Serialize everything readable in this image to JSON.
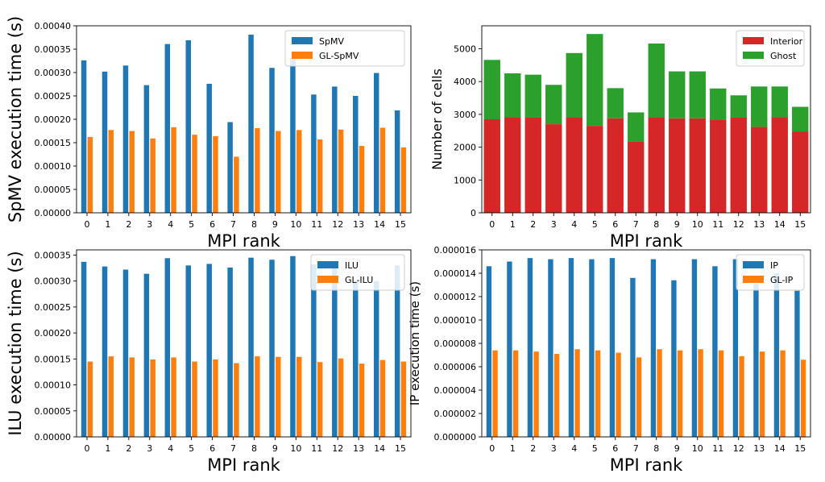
{
  "chart_data": [
    {
      "type": "bar",
      "mode": "grouped",
      "categories": [
        "0",
        "1",
        "2",
        "3",
        "4",
        "5",
        "6",
        "7",
        "8",
        "9",
        "10",
        "11",
        "12",
        "13",
        "14",
        "15"
      ],
      "series": [
        {
          "name": "SpMV",
          "color": "#1f77b4",
          "values": [
            0.000326,
            0.000302,
            0.000315,
            0.000273,
            0.000361,
            0.000369,
            0.000276,
            0.000194,
            0.000381,
            0.00031,
            0.000329,
            0.000253,
            0.00027,
            0.00025,
            0.000299,
            0.000219
          ]
        },
        {
          "name": "GL-SpMV",
          "color": "#ff7f0e",
          "values": [
            0.000162,
            0.000177,
            0.000175,
            0.000159,
            0.000183,
            0.000167,
            0.000164,
            0.00012,
            0.000181,
            0.000175,
            0.000177,
            0.000157,
            0.000178,
            0.000143,
            0.000182,
            0.00014
          ]
        }
      ],
      "xlabel": "MPI rank",
      "ylabel": "SpMV execution time (s)",
      "ylim": [
        0,
        0.0004
      ],
      "yticks": [
        "0.00000",
        "0.00005",
        "0.00010",
        "0.00015",
        "0.00020",
        "0.00025",
        "0.00030",
        "0.00035",
        "0.00040"
      ],
      "legend": "top-right"
    },
    {
      "type": "bar",
      "mode": "stacked",
      "categories": [
        "0",
        "1",
        "2",
        "3",
        "4",
        "5",
        "6",
        "7",
        "8",
        "9",
        "10",
        "11",
        "12",
        "13",
        "14",
        "15"
      ],
      "series": [
        {
          "name": "Interior",
          "color": "#d62728",
          "values": [
            2850,
            2910,
            2900,
            2700,
            2910,
            2650,
            2880,
            2180,
            2910,
            2880,
            2880,
            2840,
            2900,
            2620,
            2920,
            2480
          ]
        },
        {
          "name": "Ghost",
          "color": "#2ca02c",
          "values": [
            1810,
            1340,
            1310,
            1200,
            1960,
            2800,
            920,
            880,
            2250,
            1430,
            1430,
            950,
            680,
            1230,
            930,
            750
          ]
        }
      ],
      "xlabel": "MPI rank",
      "ylabel": "Number of cells",
      "ylim": [
        0,
        5700
      ],
      "yticks": [
        "0",
        "1000",
        "2000",
        "3000",
        "4000",
        "5000"
      ],
      "legend": "top-right"
    },
    {
      "type": "bar",
      "mode": "grouped",
      "categories": [
        "0",
        "1",
        "2",
        "3",
        "4",
        "5",
        "6",
        "7",
        "8",
        "9",
        "10",
        "11",
        "12",
        "13",
        "14",
        "15"
      ],
      "series": [
        {
          "name": "ILU",
          "color": "#1f77b4",
          "values": [
            0.000337,
            0.000328,
            0.000322,
            0.000314,
            0.000344,
            0.00033,
            0.000333,
            0.000326,
            0.000345,
            0.000341,
            0.000348,
            0.000332,
            0.000336,
            0.0003,
            0.0003,
            0.00033
          ]
        },
        {
          "name": "GL-ILU",
          "color": "#ff7f0e",
          "values": [
            0.000145,
            0.000155,
            0.000153,
            0.000149,
            0.000153,
            0.000145,
            0.000149,
            0.000142,
            0.000155,
            0.000154,
            0.000154,
            0.000144,
            0.000151,
            0.000141,
            0.000148,
            0.000145
          ]
        }
      ],
      "xlabel": "MPI rank",
      "ylabel": "ILU execution time (s)",
      "ylim": [
        0,
        0.00036
      ],
      "yticks": [
        "0.00000",
        "0.00005",
        "0.00010",
        "0.00015",
        "0.00020",
        "0.00025",
        "0.00030",
        "0.00035"
      ],
      "legend": "top-right"
    },
    {
      "type": "bar",
      "mode": "grouped",
      "categories": [
        "0",
        "1",
        "2",
        "3",
        "4",
        "5",
        "6",
        "7",
        "8",
        "9",
        "10",
        "11",
        "12",
        "13",
        "14",
        "15"
      ],
      "series": [
        {
          "name": "IP",
          "color": "#1f77b4",
          "values": [
            1.46e-05,
            1.5e-05,
            1.53e-05,
            1.52e-05,
            1.53e-05,
            1.52e-05,
            1.53e-05,
            1.36e-05,
            1.52e-05,
            1.34e-05,
            1.52e-05,
            1.46e-05,
            1.52e-05,
            1.31e-05,
            1.4e-05,
            1.25e-05
          ]
        },
        {
          "name": "GL-IP",
          "color": "#ff7f0e",
          "values": [
            7.4e-06,
            7.4e-06,
            7.3e-06,
            7.1e-06,
            7.5e-06,
            7.4e-06,
            7.2e-06,
            6.8e-06,
            7.5e-06,
            7.4e-06,
            7.5e-06,
            7.4e-06,
            6.9e-06,
            7.3e-06,
            7.4e-06,
            6.6e-06
          ]
        }
      ],
      "xlabel": "MPI rank",
      "ylabel": "IP execution time (s)",
      "ylim": [
        0,
        1.6e-05
      ],
      "yticks": [
        "0.000000",
        "0.000002",
        "0.000004",
        "0.000006",
        "0.000008",
        "0.000010",
        "0.000012",
        "0.000014",
        "0.000016"
      ],
      "legend": "top-right"
    }
  ]
}
